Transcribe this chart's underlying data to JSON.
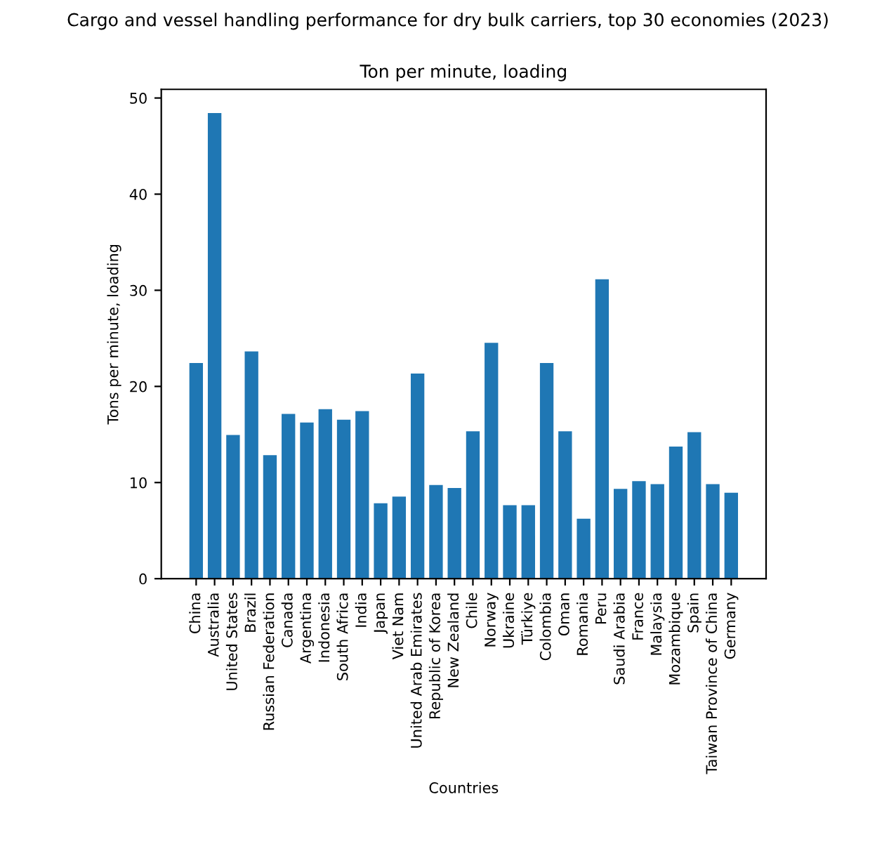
{
  "chart_data": {
    "type": "bar",
    "title": "Cargo and vessel handling performance for dry bulk carriers, top 30 economies (2023)",
    "subtitle": "Ton per minute, loading",
    "xlabel": "Countries",
    "ylabel": "Tons per minute, loading",
    "categories": [
      "China",
      "Australia",
      "United States",
      "Brazil",
      "Russian Federation",
      "Canada",
      "Argentina",
      "Indonesia",
      "South Africa",
      "India",
      "Japan",
      "Viet Nam",
      "United Arab Emirates",
      "Republic of Korea",
      "New Zealand",
      "Chile",
      "Norway",
      "Ukraine",
      "Türkiye",
      "Colombia",
      "Oman",
      "Romania",
      "Peru",
      "Saudi Arabia",
      "France",
      "Malaysia",
      "Mozambique",
      "Spain",
      "Taiwan Province of China",
      "Germany"
    ],
    "values": [
      22.5,
      48.5,
      15.0,
      23.7,
      12.9,
      17.2,
      16.3,
      17.7,
      16.6,
      17.5,
      7.9,
      8.6,
      21.4,
      9.8,
      9.5,
      15.4,
      24.6,
      7.7,
      7.7,
      22.5,
      15.4,
      6.3,
      31.2,
      9.4,
      10.2,
      9.9,
      13.8,
      15.3,
      9.9,
      9.0
    ],
    "color": "#1f77b4",
    "ylim": [
      0,
      50.9
    ],
    "yticks": [
      0,
      10,
      20,
      30,
      40,
      50
    ],
    "grid": false
  }
}
